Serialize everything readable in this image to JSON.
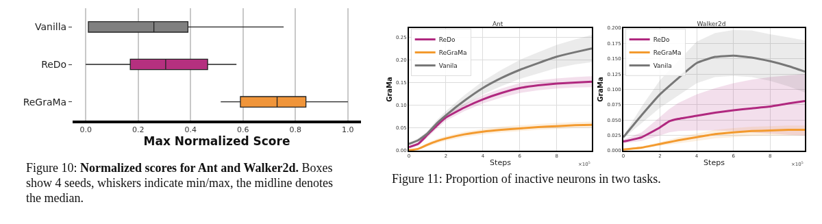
{
  "chart_data": [
    {
      "type": "box",
      "orientation": "horizontal",
      "categories": [
        "Vanilla",
        "ReDo",
        "ReGraMa"
      ],
      "colors": [
        "#808080",
        "#b5307f",
        "#f0953a"
      ],
      "boxes": [
        {
          "low": 0.01,
          "q1": 0.01,
          "median": 0.26,
          "q3": 0.39,
          "high": 0.755
        },
        {
          "low": 0.0,
          "q1": 0.17,
          "median": 0.305,
          "q3": 0.465,
          "high": 0.575
        },
        {
          "low": 0.515,
          "q1": 0.59,
          "median": 0.73,
          "q3": 0.84,
          "high": 1.0
        }
      ],
      "xlabel": "Max Normalized Score",
      "xlim": [
        -0.05,
        1.05
      ],
      "xticks": [
        {
          "value": 0,
          "label": "0.0"
        },
        0.2,
        0.4,
        0.6,
        0.8,
        {
          "value": 1,
          "label": "1.0"
        }
      ],
      "grid": "x",
      "legend": false,
      "annotations": [
        "Figure 10:",
        "Normalized scores for Ant and Walker2d.",
        "Boxes show 4 seeds, whiskers indicate min/max, the midline denotes the median."
      ]
    },
    {
      "type": "line",
      "title": "Ant",
      "xlabel": "Steps",
      "ylabel": "GraMa",
      "x": [
        0,
        0.5,
        1,
        1.5,
        2,
        3,
        4,
        5,
        6,
        7,
        8,
        9,
        9.9
      ],
      "series": [
        {
          "name": "ReDo",
          "color": "#b0287f",
          "values": [
            0.008,
            0.015,
            0.035,
            0.055,
            0.073,
            0.095,
            0.113,
            0.127,
            0.138,
            0.144,
            0.148,
            0.15,
            0.152
          ],
          "lower": [
            0.006,
            0.011,
            0.029,
            0.048,
            0.066,
            0.087,
            0.104,
            0.117,
            0.127,
            0.133,
            0.137,
            0.139,
            0.14
          ],
          "upper": [
            0.01,
            0.019,
            0.041,
            0.062,
            0.08,
            0.103,
            0.122,
            0.137,
            0.149,
            0.155,
            0.159,
            0.162,
            0.164
          ]
        },
        {
          "name": "ReGraMa",
          "color": "#f39a2e",
          "values": [
            0.001,
            0.004,
            0.013,
            0.021,
            0.027,
            0.036,
            0.042,
            0.046,
            0.049,
            0.052,
            0.054,
            0.056,
            0.057
          ],
          "lower": [
            0.0,
            0.002,
            0.009,
            0.016,
            0.022,
            0.03,
            0.036,
            0.04,
            0.043,
            0.046,
            0.048,
            0.05,
            0.051
          ],
          "upper": [
            0.002,
            0.006,
            0.017,
            0.026,
            0.032,
            0.042,
            0.048,
            0.053,
            0.056,
            0.059,
            0.061,
            0.063,
            0.064
          ]
        },
        {
          "name": "Vanila",
          "color": "#777777",
          "values": [
            0.015,
            0.023,
            0.038,
            0.06,
            0.078,
            0.11,
            0.138,
            0.16,
            0.178,
            0.193,
            0.207,
            0.217,
            0.225
          ],
          "lower": [
            0.012,
            0.019,
            0.033,
            0.053,
            0.07,
            0.099,
            0.124,
            0.142,
            0.158,
            0.17,
            0.182,
            0.19,
            0.195
          ],
          "upper": [
            0.018,
            0.027,
            0.043,
            0.067,
            0.087,
            0.122,
            0.153,
            0.178,
            0.2,
            0.217,
            0.233,
            0.245,
            0.255
          ]
        }
      ],
      "xlim": [
        0,
        9.9
      ],
      "xticks": [
        0,
        2,
        4,
        6,
        8
      ],
      "ylim": [
        0,
        0.27
      ],
      "yticks": [
        {
          "value": 0,
          "label": "0.00"
        },
        0.05,
        {
          "value": 0.1,
          "label": "0.10"
        },
        0.15,
        {
          "value": 0.2,
          "label": "0.20"
        },
        0.25
      ],
      "grid": true,
      "legend": "top left",
      "line_style": "solid",
      "marker": "none",
      "annotations": [
        "×10$^{5}$",
        "Figure 11: Proportion of inactive neurons in two tasks."
      ]
    },
    {
      "type": "line",
      "title": "Walker2d",
      "xlabel": "Steps",
      "ylabel": "GraMa",
      "x": [
        0,
        1,
        2,
        2.5,
        3,
        4,
        5,
        6,
        7,
        8,
        9,
        9.9
      ],
      "series": [
        {
          "name": "ReDo",
          "color": "#b0287f",
          "values": [
            0.015,
            0.022,
            0.038,
            0.048,
            0.052,
            0.057,
            0.062,
            0.066,
            0.069,
            0.072,
            0.077,
            0.081
          ],
          "lower": [
            0.012,
            0.016,
            0.025,
            0.03,
            0.032,
            0.033,
            0.033,
            0.032,
            0.03,
            0.028,
            0.026,
            0.025
          ],
          "upper": [
            0.018,
            0.03,
            0.055,
            0.068,
            0.078,
            0.092,
            0.102,
            0.11,
            0.116,
            0.12,
            0.123,
            0.125
          ]
        },
        {
          "name": "ReGraMa",
          "color": "#f39a2e",
          "values": [
            0.002,
            0.005,
            0.011,
            0.014,
            0.017,
            0.022,
            0.027,
            0.03,
            0.032,
            0.033,
            0.034,
            0.034
          ],
          "lower": [
            0.001,
            0.003,
            0.008,
            0.01,
            0.012,
            0.016,
            0.02,
            0.022,
            0.024,
            0.025,
            0.025,
            0.025
          ],
          "upper": [
            0.003,
            0.007,
            0.014,
            0.018,
            0.022,
            0.028,
            0.034,
            0.037,
            0.039,
            0.04,
            0.041,
            0.041
          ]
        },
        {
          "name": "Vanila",
          "color": "#777777",
          "x": [
            0,
            1,
            2,
            4,
            5,
            6,
            7,
            8,
            9,
            9.9
          ],
          "values": [
            0.022,
            0.058,
            0.092,
            0.143,
            0.153,
            0.155,
            0.152,
            0.146,
            0.138,
            0.129
          ],
          "lower": [
            0.02,
            0.045,
            0.07,
            0.11,
            0.12,
            0.122,
            0.12,
            0.114,
            0.105,
            0.095
          ],
          "upper": [
            0.024,
            0.072,
            0.115,
            0.178,
            0.192,
            0.197,
            0.196,
            0.19,
            0.185,
            0.18
          ]
        }
      ],
      "xlim": [
        0,
        9.9
      ],
      "xticks": [
        0,
        2,
        4,
        6,
        8
      ],
      "ylim": [
        0,
        0.2
      ],
      "yticks": [
        {
          "value": 0,
          "label": "0.000"
        },
        0.025,
        {
          "value": 0.05,
          "label": "0.050"
        },
        0.075,
        {
          "value": 0.1,
          "label": "0.100"
        },
        0.125,
        {
          "value": 0.15,
          "label": "0.150"
        },
        0.175,
        {
          "value": 0.2,
          "label": "0.200"
        }
      ],
      "grid": true,
      "legend": "top left",
      "line_style": "solid",
      "marker": "none",
      "annotations": [
        "×10$^{5}$"
      ]
    }
  ]
}
